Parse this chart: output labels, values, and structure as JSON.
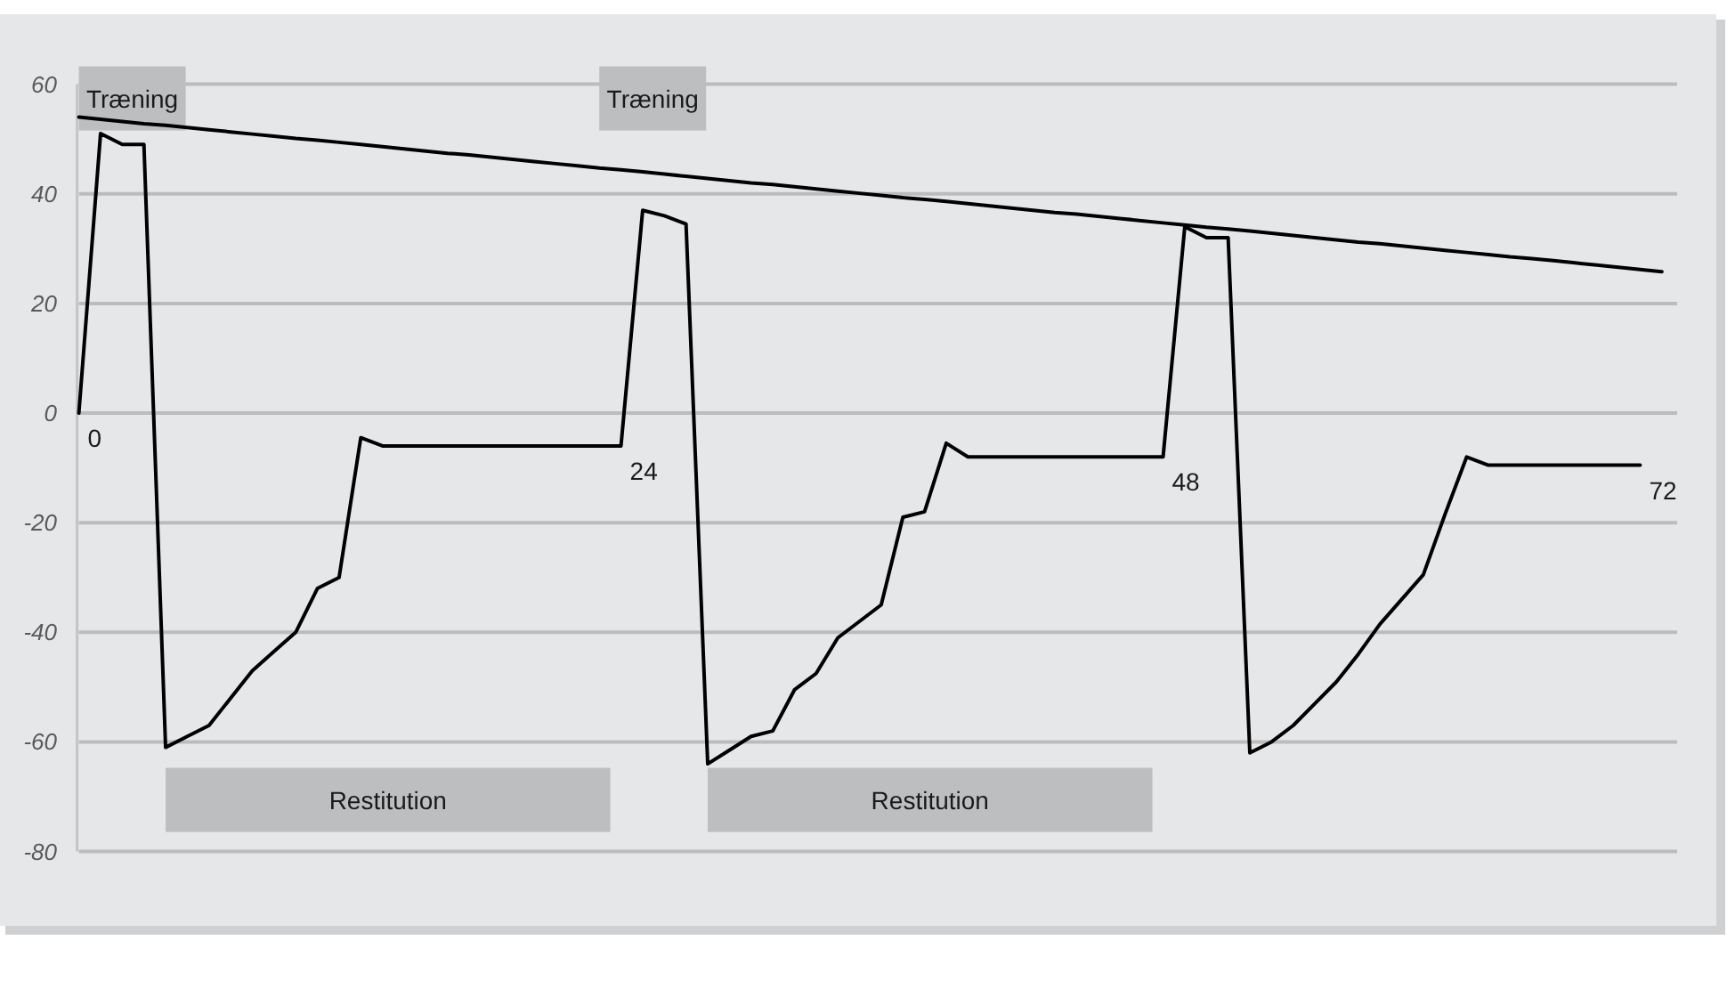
{
  "chart_data": {
    "type": "line",
    "categories": [
      null,
      null,
      null,
      null,
      null,
      null,
      null,
      null,
      null,
      null,
      null,
      null,
      null,
      null,
      null,
      null,
      null,
      null,
      null,
      null,
      null,
      null,
      null,
      null,
      null,
      null,
      null,
      null,
      null,
      null,
      null,
      null,
      null,
      null,
      null,
      null,
      null,
      null,
      null,
      null,
      null,
      null,
      null,
      null,
      null,
      null,
      null,
      null,
      null,
      null,
      null,
      null,
      null,
      null,
      null,
      null,
      null,
      null,
      null,
      null,
      null,
      null,
      null,
      null,
      null,
      null,
      null,
      null,
      null,
      null,
      null,
      null,
      null,
      null
    ],
    "series": [
      {
        "color": "#000000",
        "values": [
          0,
          51,
          49,
          49,
          -61,
          -59,
          -57,
          -52,
          -47,
          -43.5,
          -40,
          -32,
          -30,
          -4.5,
          -6,
          -6,
          -6,
          -6,
          -6,
          -6,
          -6,
          -6,
          -6,
          -6,
          -6,
          -6,
          37,
          36,
          34.5,
          -64,
          -61.5,
          -59,
          -58,
          -50.5,
          -47.5,
          -41,
          -38,
          -35,
          -19,
          -18,
          -5.5,
          -8,
          -8,
          -8,
          -8,
          -8,
          -8,
          -8,
          -8,
          -8,
          -8,
          34,
          32,
          32,
          -62,
          -60,
          -57,
          -53,
          -49,
          -44,
          -38.5,
          -34,
          -29.5,
          -18.5,
          -8,
          -9.5,
          -9.5,
          -9.5,
          -9.5,
          -9.5,
          -9.5,
          -9.5,
          -9.5,
          null
        ]
      },
      {
        "type": "line",
        "color": "#000000",
        "values": [
          54.0,
          53.6,
          53.2,
          52.8,
          52.5,
          52.1,
          51.7,
          51.3,
          50.9,
          50.5,
          50.1,
          49.8,
          49.4,
          49.0,
          48.6,
          48.2,
          47.8,
          47.4,
          47.1,
          46.7,
          46.3,
          45.9,
          45.5,
          45.1,
          44.7,
          44.4,
          44.0,
          43.6,
          43.2,
          42.8,
          42.4,
          42.0,
          41.7,
          41.3,
          40.9,
          40.5,
          40.1,
          39.7,
          39.3,
          39.0,
          38.6,
          38.2,
          37.8,
          37.4,
          37.0,
          36.6,
          36.3,
          35.9,
          35.5,
          35.1,
          34.7,
          34.3,
          33.9,
          33.6,
          33.2,
          32.8,
          32.4,
          32.0,
          31.6,
          31.2,
          30.9,
          30.5,
          30.1,
          29.7,
          29.3,
          28.9,
          28.5,
          28.2,
          27.8,
          27.4,
          27.0,
          26.6,
          26.2,
          25.8
        ]
      }
    ],
    "ylim": [
      -80,
      60
    ],
    "yticks": [
      -80,
      -60,
      -40,
      -20,
      0,
      20,
      40,
      60
    ],
    "tick_labels": "y",
    "grid": "y",
    "annotations": [
      "0",
      "24",
      "48",
      "72",
      "Træning",
      "Restitution",
      "Træning",
      "Restitution"
    ]
  }
}
